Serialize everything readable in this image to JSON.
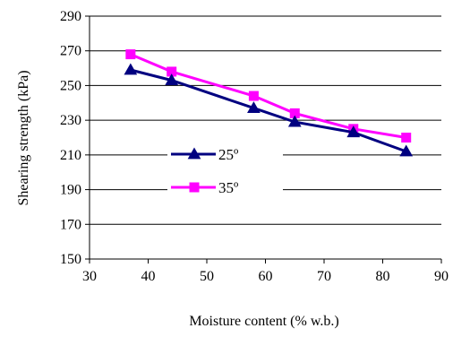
{
  "chart_data": {
    "type": "line",
    "xlabel": "Moisture content (% w.b.)",
    "ylabel": "Shearing strength (kPa)",
    "xlim": [
      30,
      90
    ],
    "ylim": [
      150,
      290
    ],
    "x_ticks": [
      "30",
      "40",
      "50",
      "60",
      "70",
      "80",
      "90"
    ],
    "y_ticks": [
      "150",
      "170",
      "190",
      "210",
      "230",
      "250",
      "270",
      "290"
    ],
    "grid": "horizontal",
    "legend_position": "center-left",
    "series": [
      {
        "name": "25º",
        "color": "#000080",
        "marker": "triangle",
        "x": [
          37,
          44,
          58,
          65,
          75,
          84
        ],
        "y": [
          259,
          253,
          237,
          229,
          223,
          212
        ]
      },
      {
        "name": "35º",
        "color": "#ff00ff",
        "marker": "square",
        "x": [
          37,
          44,
          58,
          65,
          75,
          84
        ],
        "y": [
          268,
          258,
          244,
          234,
          225,
          220
        ]
      }
    ]
  }
}
